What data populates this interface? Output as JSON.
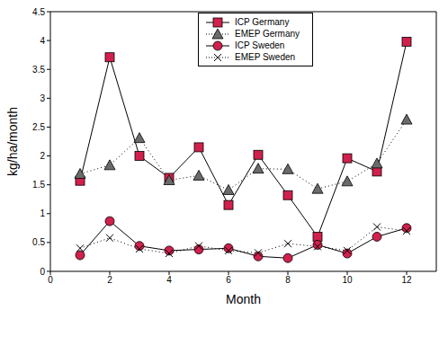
{
  "chart_data": {
    "type": "line",
    "x": [
      1,
      2,
      3,
      4,
      5,
      6,
      7,
      8,
      9,
      10,
      11,
      12
    ],
    "xlabel": "Month",
    "ylabel": "kg/ha/month",
    "xlim": [
      0,
      13
    ],
    "xticks": [
      0,
      2,
      4,
      6,
      8,
      10,
      12
    ],
    "ylim": [
      0,
      4.5
    ],
    "yticks": [
      0,
      0.5,
      1,
      1.5,
      2,
      2.5,
      3,
      3.5,
      4,
      4.5
    ],
    "grid": false,
    "legend": "upper center",
    "series": [
      {
        "name": "ICP Germany",
        "color": "#d1204c",
        "marker": "square",
        "line_style": "solid",
        "values": [
          1.57,
          3.71,
          2.0,
          1.62,
          2.15,
          1.15,
          2.02,
          1.32,
          0.6,
          1.96,
          1.73,
          3.98
        ]
      },
      {
        "name": "EMEP Germany",
        "color": "#6b6b6b",
        "marker": "triangle",
        "line_style": "dotted",
        "values": [
          1.69,
          1.84,
          2.31,
          1.58,
          1.66,
          1.41,
          1.78,
          1.77,
          1.43,
          1.56,
          1.87,
          2.63
        ]
      },
      {
        "name": "ICP Sweden",
        "color": "#d1204c",
        "marker": "circle",
        "line_style": "solid",
        "values": [
          0.28,
          0.87,
          0.44,
          0.36,
          0.38,
          0.4,
          0.26,
          0.23,
          0.46,
          0.31,
          0.6,
          0.75
        ]
      },
      {
        "name": "EMEP Sweden",
        "color": "#000000",
        "marker": "x",
        "line_style": "dotted",
        "values": [
          0.4,
          0.58,
          0.39,
          0.31,
          0.44,
          0.36,
          0.32,
          0.48,
          0.43,
          0.36,
          0.77,
          0.7
        ]
      }
    ]
  }
}
